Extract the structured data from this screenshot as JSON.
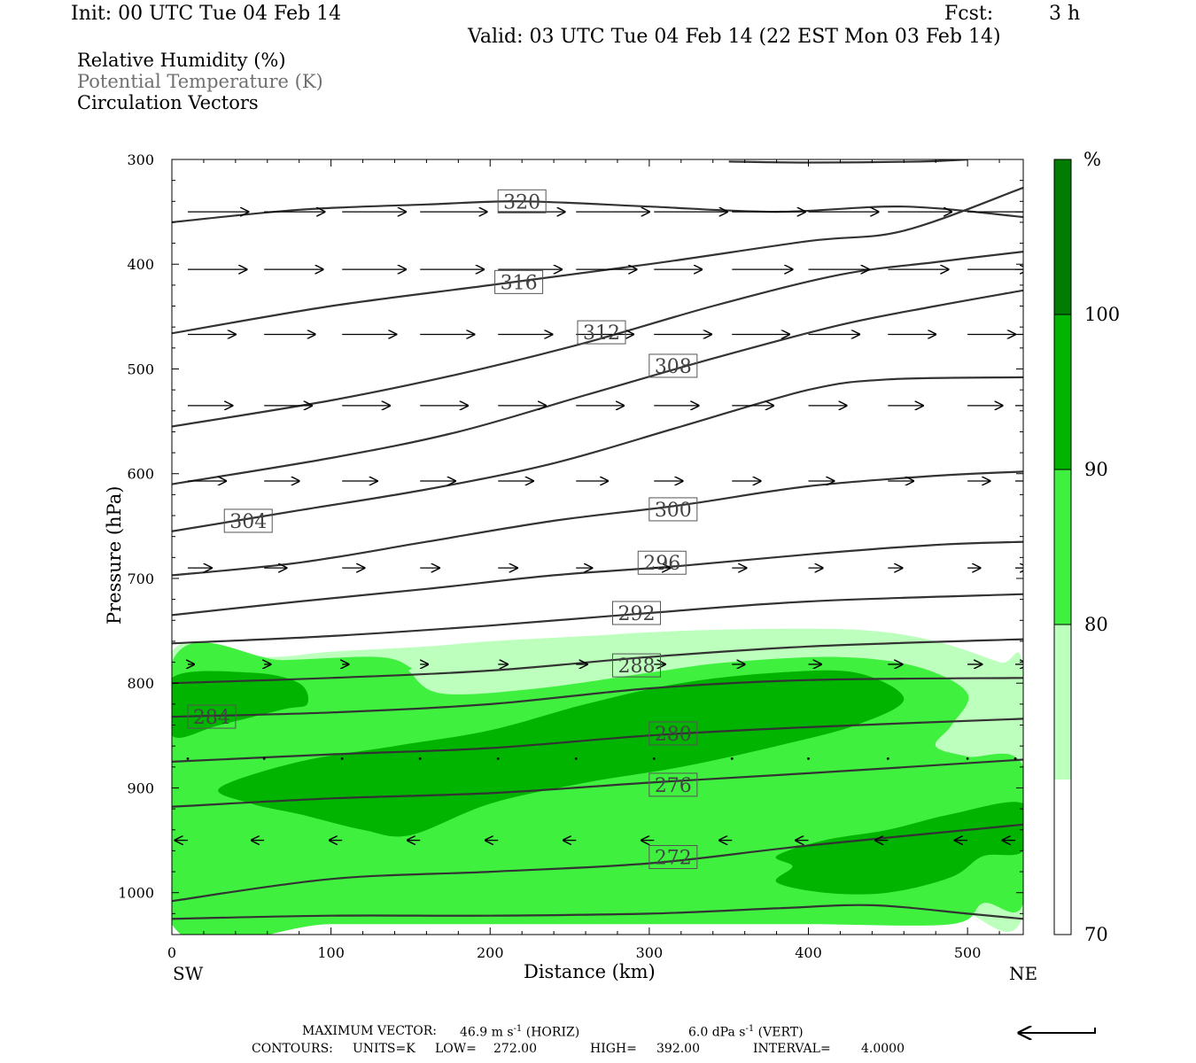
{
  "header": {
    "init": "Init: 00 UTC Tue 04 Feb 14",
    "fcst_label": "Fcst:",
    "fcst_value": "3 h",
    "valid": "Valid: 03 UTC Tue 04 Feb 14 (22 EST Mon 03 Feb 14)"
  },
  "legend": {
    "field1": "Relative Humidity (%)",
    "field2": "Potential Temperature (K)",
    "field3": "Circulation Vectors"
  },
  "footer": {
    "max_vector_label": "MAXIMUM VECTOR:",
    "horiz_value": "46.9 m s",
    "horiz_unit": "(HORIZ)",
    "vert_value": "6.0 dPa s",
    "vert_unit": "(VERT)",
    "exponent": "-1",
    "contours_label": "CONTOURS:",
    "units": "UNITS=K",
    "low_label": "LOW=",
    "low": "272.00",
    "high_label": "HIGH=",
    "high": "392.00",
    "interval_label": "INTERVAL=",
    "interval": "4.0000"
  },
  "colors": {
    "rh_70_80": "#bdffbd",
    "rh_80_90": "#3ff03f",
    "rh_90_100": "#00b400",
    "rh_100": "#007d00",
    "theta_line": "#333333"
  },
  "chart_data": {
    "type": "heatmap",
    "description_units": {
      "x": "km",
      "y": "hPa"
    },
    "xlabel": "Distance (km)",
    "ylabel": "Pressure (hPa)",
    "xlim": [
      0,
      535
    ],
    "ylim": [
      1040,
      300
    ],
    "y_scale": "linear",
    "x_ticks": [
      0,
      100,
      200,
      300,
      400,
      500
    ],
    "y_ticks": [
      300,
      400,
      500,
      600,
      700,
      800,
      900,
      1000
    ],
    "x_end_labels": {
      "left": "SW",
      "right": "NE"
    },
    "colorbar": {
      "unit_label": "%",
      "levels": [
        70,
        80,
        90,
        100
      ],
      "level_labels": [
        "70",
        "80",
        "90",
        "100"
      ]
    },
    "rh_regions": [
      {
        "level": 70,
        "points": [
          [
            0,
            770
          ],
          [
            60,
            775
          ],
          [
            100,
            770
          ],
          [
            160,
            765
          ],
          [
            200,
            760
          ],
          [
            260,
            755
          ],
          [
            320,
            750
          ],
          [
            390,
            748
          ],
          [
            440,
            750
          ],
          [
            480,
            760
          ],
          [
            520,
            780
          ],
          [
            535,
            790
          ],
          [
            535,
            1020
          ],
          [
            500,
            1020
          ],
          [
            480,
            1010
          ],
          [
            470,
            985
          ],
          [
            440,
            955
          ],
          [
            400,
            935
          ],
          [
            340,
            920
          ],
          [
            280,
            920
          ],
          [
            220,
            925
          ],
          [
            160,
            925
          ],
          [
            100,
            920
          ],
          [
            40,
            920
          ],
          [
            0,
            920
          ]
        ]
      },
      {
        "level": 80,
        "points": [
          [
            0,
            780
          ],
          [
            70,
            778
          ],
          [
            130,
            775
          ],
          [
            150,
            785
          ],
          [
            150,
            790
          ],
          [
            170,
            810
          ],
          [
            230,
            805
          ],
          [
            300,
            790
          ],
          [
            350,
            780
          ],
          [
            420,
            775
          ],
          [
            470,
            785
          ],
          [
            500,
            810
          ],
          [
            490,
            840
          ],
          [
            480,
            860
          ],
          [
            500,
            870
          ],
          [
            535,
            880
          ],
          [
            535,
            1010
          ],
          [
            510,
            1010
          ],
          [
            490,
            1030
          ],
          [
            400,
            1030
          ],
          [
            300,
            1030
          ],
          [
            200,
            1030
          ],
          [
            100,
            1030
          ],
          [
            0,
            1030
          ]
        ]
      },
      {
        "level": 90,
        "points": [
          [
            0,
            795
          ],
          [
            50,
            790
          ],
          [
            80,
            800
          ],
          [
            85,
            820
          ],
          [
            70,
            825
          ],
          [
            30,
            840
          ],
          [
            0,
            850
          ]
        ]
      },
      {
        "level": 90,
        "points": [
          [
            30,
            900
          ],
          [
            80,
            875
          ],
          [
            140,
            860
          ],
          [
            200,
            845
          ],
          [
            260,
            820
          ],
          [
            320,
            800
          ],
          [
            380,
            790
          ],
          [
            430,
            790
          ],
          [
            460,
            815
          ],
          [
            430,
            840
          ],
          [
            380,
            860
          ],
          [
            320,
            880
          ],
          [
            260,
            895
          ],
          [
            200,
            915
          ],
          [
            150,
            945
          ],
          [
            120,
            940
          ],
          [
            80,
            925
          ],
          [
            50,
            915
          ]
        ]
      },
      {
        "level": 90,
        "points": [
          [
            380,
            965
          ],
          [
            410,
            950
          ],
          [
            450,
            940
          ],
          [
            490,
            925
          ],
          [
            535,
            915
          ],
          [
            535,
            960
          ],
          [
            510,
            965
          ],
          [
            490,
            985
          ],
          [
            450,
            1000
          ],
          [
            410,
            1000
          ],
          [
            380,
            990
          ],
          [
            390,
            975
          ]
        ]
      }
    ],
    "theta_contours": [
      {
        "label": "320",
        "label_at": [
          220,
          340
        ],
        "points": [
          [
            0,
            360
          ],
          [
            80,
            348
          ],
          [
            160,
            343
          ],
          [
            220,
            340
          ],
          [
            300,
            345
          ],
          [
            380,
            350
          ],
          [
            460,
            345
          ],
          [
            535,
            355
          ]
        ]
      },
      {
        "label": "",
        "label_at": null,
        "points": [
          [
            350,
            302
          ],
          [
            400,
            303
          ],
          [
            470,
            302
          ],
          [
            500,
            300
          ]
        ]
      },
      {
        "label": "316",
        "label_at": [
          218,
          417
        ],
        "points": [
          [
            0,
            466
          ],
          [
            100,
            440
          ],
          [
            200,
            420
          ],
          [
            300,
            400
          ],
          [
            400,
            378
          ],
          [
            460,
            368
          ],
          [
            535,
            327
          ]
        ]
      },
      {
        "label": "312",
        "label_at": [
          270,
          465
        ],
        "points": [
          [
            0,
            555
          ],
          [
            100,
            530
          ],
          [
            180,
            505
          ],
          [
            260,
            475
          ],
          [
            340,
            440
          ],
          [
            420,
            410
          ],
          [
            480,
            398
          ],
          [
            535,
            388
          ]
        ]
      },
      {
        "label": "308",
        "label_at": [
          315,
          497
        ],
        "points": [
          [
            0,
            610
          ],
          [
            100,
            585
          ],
          [
            180,
            560
          ],
          [
            260,
            525
          ],
          [
            340,
            490
          ],
          [
            420,
            458
          ],
          [
            480,
            440
          ],
          [
            535,
            425
          ]
        ]
      },
      {
        "label": "304",
        "label_at": [
          48,
          645
        ],
        "points": [
          [
            0,
            655
          ],
          [
            80,
            635
          ],
          [
            160,
            615
          ],
          [
            240,
            590
          ],
          [
            320,
            555
          ],
          [
            400,
            520
          ],
          [
            450,
            510
          ],
          [
            535,
            508
          ]
        ]
      },
      {
        "label": "300",
        "label_at": [
          315,
          634
        ],
        "points": [
          [
            0,
            697
          ],
          [
            80,
            685
          ],
          [
            160,
            665
          ],
          [
            240,
            645
          ],
          [
            320,
            630
          ],
          [
            400,
            612
          ],
          [
            480,
            602
          ],
          [
            535,
            598
          ]
        ]
      },
      {
        "label": "296",
        "label_at": [
          308,
          685
        ],
        "points": [
          [
            0,
            735
          ],
          [
            80,
            722
          ],
          [
            160,
            710
          ],
          [
            240,
            697
          ],
          [
            320,
            688
          ],
          [
            400,
            677
          ],
          [
            480,
            668
          ],
          [
            535,
            665
          ]
        ]
      },
      {
        "label": "292",
        "label_at": [
          292,
          733
        ],
        "points": [
          [
            0,
            762
          ],
          [
            100,
            755
          ],
          [
            200,
            745
          ],
          [
            300,
            733
          ],
          [
            400,
            722
          ],
          [
            535,
            715
          ]
        ]
      },
      {
        "label": "288",
        "label_at": [
          292,
          783
        ],
        "points": [
          [
            0,
            800
          ],
          [
            100,
            795
          ],
          [
            200,
            788
          ],
          [
            300,
            775
          ],
          [
            400,
            765
          ],
          [
            535,
            758
          ]
        ]
      },
      {
        "label": "284",
        "label_at": [
          25,
          832
        ],
        "points": [
          [
            0,
            832
          ],
          [
            100,
            828
          ],
          [
            200,
            820
          ],
          [
            300,
            805
          ],
          [
            400,
            797
          ],
          [
            535,
            795
          ]
        ]
      },
      {
        "label": "280",
        "label_at": [
          315,
          848
        ],
        "points": [
          [
            0,
            875
          ],
          [
            100,
            868
          ],
          [
            200,
            862
          ],
          [
            300,
            850
          ],
          [
            400,
            842
          ],
          [
            535,
            834
          ]
        ]
      },
      {
        "label": "276",
        "label_at": [
          315,
          897
        ],
        "points": [
          [
            0,
            918
          ],
          [
            100,
            910
          ],
          [
            200,
            905
          ],
          [
            300,
            895
          ],
          [
            400,
            886
          ],
          [
            535,
            873
          ]
        ]
      },
      {
        "label": "272",
        "label_at": [
          315,
          966
        ],
        "points": [
          [
            0,
            1008
          ],
          [
            100,
            987
          ],
          [
            200,
            980
          ],
          [
            300,
            972
          ],
          [
            400,
            955
          ],
          [
            535,
            935
          ]
        ]
      },
      {
        "label": "",
        "label_at": null,
        "points": [
          [
            0,
            1025
          ],
          [
            100,
            1022
          ],
          [
            200,
            1022
          ],
          [
            300,
            1020
          ],
          [
            380,
            1015
          ],
          [
            440,
            1012
          ],
          [
            500,
            1020
          ],
          [
            535,
            1025
          ]
        ]
      }
    ],
    "vectors": [
      {
        "row_p": 350,
        "dx_km": [
          38,
          38,
          40,
          42,
          42,
          46,
          46,
          46,
          44,
          40,
          40,
          40
        ],
        "dy_hpa": [
          0,
          0,
          0,
          0,
          0,
          0,
          0,
          0,
          0,
          0,
          0,
          0
        ]
      },
      {
        "row_p": 405,
        "dx_km": [
          37,
          37,
          40,
          40,
          40,
          38,
          30,
          38,
          38,
          38,
          38,
          38
        ],
        "dy_hpa": [
          0,
          0,
          0,
          0,
          0,
          0,
          0,
          0,
          0,
          0,
          0,
          0
        ]
      },
      {
        "row_p": 467,
        "dx_km": [
          30,
          32,
          34,
          34,
          34,
          36,
          36,
          36,
          32,
          30,
          30,
          30
        ],
        "dy_hpa": [
          0,
          0,
          0,
          0,
          0,
          0,
          0,
          0,
          0,
          0,
          0,
          0
        ]
      },
      {
        "row_p": 535,
        "dx_km": [
          28,
          30,
          30,
          30,
          30,
          30,
          28,
          26,
          24,
          22,
          22,
          20
        ],
        "dy_hpa": [
          0,
          0,
          0,
          0,
          0,
          0,
          0,
          0,
          0,
          0,
          0,
          0
        ]
      },
      {
        "row_p": 607,
        "dx_km": [
          24,
          22,
          22,
          22,
          22,
          20,
          18,
          18,
          16,
          16,
          14,
          14
        ],
        "dy_hpa": [
          0,
          0,
          0,
          0,
          0,
          0,
          0,
          0,
          0,
          0,
          0,
          0
        ]
      },
      {
        "row_p": 690,
        "dx_km": [
          15,
          14,
          14,
          12,
          12,
          10,
          10,
          9,
          9,
          9,
          8,
          8
        ],
        "dy_hpa": [
          0,
          0,
          0,
          0,
          0,
          0,
          0,
          0,
          0,
          0,
          0,
          0
        ]
      },
      {
        "row_p": 782,
        "dx_km": [
          4,
          4,
          4,
          5,
          6,
          7,
          7,
          8,
          8,
          9,
          9,
          8
        ],
        "dy_hpa": [
          0,
          0,
          0,
          0,
          0,
          0,
          0,
          0,
          0,
          0,
          0,
          0
        ]
      },
      {
        "row_p": 872,
        "dx_km": [
          2,
          1,
          1,
          1,
          1,
          1,
          1,
          1,
          1,
          1,
          1,
          1
        ],
        "dy_hpa": [
          0,
          0,
          0,
          0,
          0,
          0,
          0,
          0,
          0,
          0,
          0,
          0
        ]
      },
      {
        "row_p": 950,
        "dx_km": [
          -8,
          -8,
          -8,
          -8,
          -8,
          -8,
          -8,
          -8,
          -8,
          -8,
          -8,
          -8
        ],
        "dy_hpa": [
          0,
          0,
          0,
          0,
          0,
          0,
          0,
          0,
          0,
          0,
          0,
          0
        ]
      }
    ],
    "vector_x_km": [
      10,
      58,
      107,
      156,
      205,
      254,
      303,
      352,
      400,
      450,
      500,
      530
    ],
    "reference_vector": "46.9 m s-1 (HORIZ) / 6.0 dPa s-1 (VERT)"
  }
}
